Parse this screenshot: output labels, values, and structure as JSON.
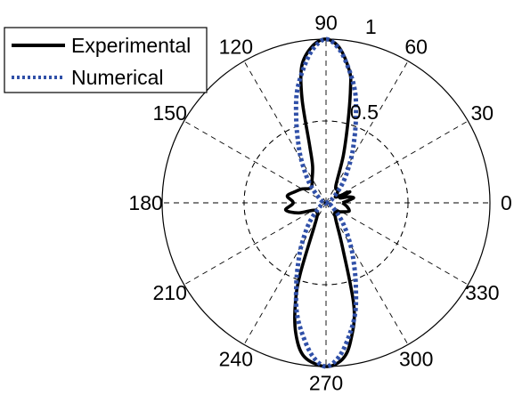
{
  "chart_data": {
    "type": "polar",
    "title": "",
    "angle_unit": "degrees",
    "r_range": [
      0,
      1
    ],
    "r_ticks": [
      {
        "value": 0.5,
        "label": "0.5"
      },
      {
        "value": 1,
        "label": "1"
      }
    ],
    "angle_ticks": [
      {
        "deg": 0,
        "label": "0"
      },
      {
        "deg": 30,
        "label": "30"
      },
      {
        "deg": 60,
        "label": "60"
      },
      {
        "deg": 90,
        "label": "90"
      },
      {
        "deg": 120,
        "label": "120"
      },
      {
        "deg": 150,
        "label": "150"
      },
      {
        "deg": 180,
        "label": "180"
      },
      {
        "deg": 210,
        "label": "210"
      },
      {
        "deg": 240,
        "label": "240"
      },
      {
        "deg": 270,
        "label": "270"
      },
      {
        "deg": 300,
        "label": "300"
      },
      {
        "deg": 330,
        "label": "330"
      }
    ],
    "grid": true,
    "legend_position": "top-left",
    "series": [
      {
        "name": "Experimental",
        "color": "#000000",
        "line_style": "solid",
        "points": [
          {
            "theta": 0,
            "r": 0.1
          },
          {
            "theta": 10,
            "r": 0.17
          },
          {
            "theta": 15,
            "r": 0.14
          },
          {
            "theta": 20,
            "r": 0.09
          },
          {
            "theta": 25,
            "r": 0.16
          },
          {
            "theta": 30,
            "r": 0.07
          },
          {
            "theta": 40,
            "r": 0.09
          },
          {
            "theta": 50,
            "r": 0.11
          },
          {
            "theta": 60,
            "r": 0.12
          },
          {
            "theta": 70,
            "r": 0.31
          },
          {
            "theta": 75,
            "r": 0.52
          },
          {
            "theta": 78,
            "r": 0.72
          },
          {
            "theta": 80,
            "r": 0.82
          },
          {
            "theta": 85,
            "r": 0.95
          },
          {
            "theta": 90,
            "r": 1.0
          },
          {
            "theta": 95,
            "r": 0.96
          },
          {
            "theta": 100,
            "r": 0.85
          },
          {
            "theta": 103,
            "r": 0.65
          },
          {
            "theta": 106,
            "r": 0.36
          },
          {
            "theta": 110,
            "r": 0.24
          },
          {
            "theta": 120,
            "r": 0.17
          },
          {
            "theta": 135,
            "r": 0.13
          },
          {
            "theta": 150,
            "r": 0.17
          },
          {
            "theta": 160,
            "r": 0.2
          },
          {
            "theta": 170,
            "r": 0.24
          },
          {
            "theta": 180,
            "r": 0.2
          },
          {
            "theta": 190,
            "r": 0.25
          },
          {
            "theta": 200,
            "r": 0.18
          },
          {
            "theta": 210,
            "r": 0.09
          },
          {
            "theta": 225,
            "r": 0.08
          },
          {
            "theta": 240,
            "r": 0.12
          },
          {
            "theta": 250,
            "r": 0.46
          },
          {
            "theta": 253,
            "r": 0.64
          },
          {
            "theta": 257,
            "r": 0.82
          },
          {
            "theta": 262,
            "r": 0.95
          },
          {
            "theta": 270,
            "r": 1.0
          },
          {
            "theta": 276,
            "r": 0.96
          },
          {
            "theta": 280,
            "r": 0.86
          },
          {
            "theta": 285,
            "r": 0.66
          },
          {
            "theta": 290,
            "r": 0.3
          },
          {
            "theta": 300,
            "r": 0.12
          },
          {
            "theta": 315,
            "r": 0.08
          },
          {
            "theta": 330,
            "r": 0.11
          },
          {
            "theta": 340,
            "r": 0.15
          },
          {
            "theta": 350,
            "r": 0.13
          },
          {
            "theta": 360,
            "r": 0.1
          }
        ]
      },
      {
        "name": "Numerical",
        "color": "#3050a8",
        "line_style": "dotted",
        "points": [
          {
            "theta": 0,
            "r": 0.0
          },
          {
            "theta": 30,
            "r": 0.04
          },
          {
            "theta": 50,
            "r": 0.16
          },
          {
            "theta": 60,
            "r": 0.3
          },
          {
            "theta": 65,
            "r": 0.4
          },
          {
            "theta": 70,
            "r": 0.53
          },
          {
            "theta": 75,
            "r": 0.69
          },
          {
            "theta": 80,
            "r": 0.82
          },
          {
            "theta": 85,
            "r": 0.94
          },
          {
            "theta": 90,
            "r": 1.0
          },
          {
            "theta": 95,
            "r": 0.94
          },
          {
            "theta": 100,
            "r": 0.82
          },
          {
            "theta": 105,
            "r": 0.69
          },
          {
            "theta": 110,
            "r": 0.53
          },
          {
            "theta": 115,
            "r": 0.4
          },
          {
            "theta": 120,
            "r": 0.3
          },
          {
            "theta": 130,
            "r": 0.16
          },
          {
            "theta": 150,
            "r": 0.04
          },
          {
            "theta": 180,
            "r": 0.0
          },
          {
            "theta": 210,
            "r": 0.04
          },
          {
            "theta": 230,
            "r": 0.16
          },
          {
            "theta": 240,
            "r": 0.3
          },
          {
            "theta": 245,
            "r": 0.4
          },
          {
            "theta": 250,
            "r": 0.53
          },
          {
            "theta": 255,
            "r": 0.69
          },
          {
            "theta": 260,
            "r": 0.82
          },
          {
            "theta": 265,
            "r": 0.94
          },
          {
            "theta": 270,
            "r": 1.0
          },
          {
            "theta": 275,
            "r": 0.94
          },
          {
            "theta": 280,
            "r": 0.82
          },
          {
            "theta": 285,
            "r": 0.69
          },
          {
            "theta": 290,
            "r": 0.53
          },
          {
            "theta": 295,
            "r": 0.4
          },
          {
            "theta": 300,
            "r": 0.3
          },
          {
            "theta": 310,
            "r": 0.16
          },
          {
            "theta": 330,
            "r": 0.04
          },
          {
            "theta": 360,
            "r": 0.0
          }
        ]
      }
    ]
  }
}
